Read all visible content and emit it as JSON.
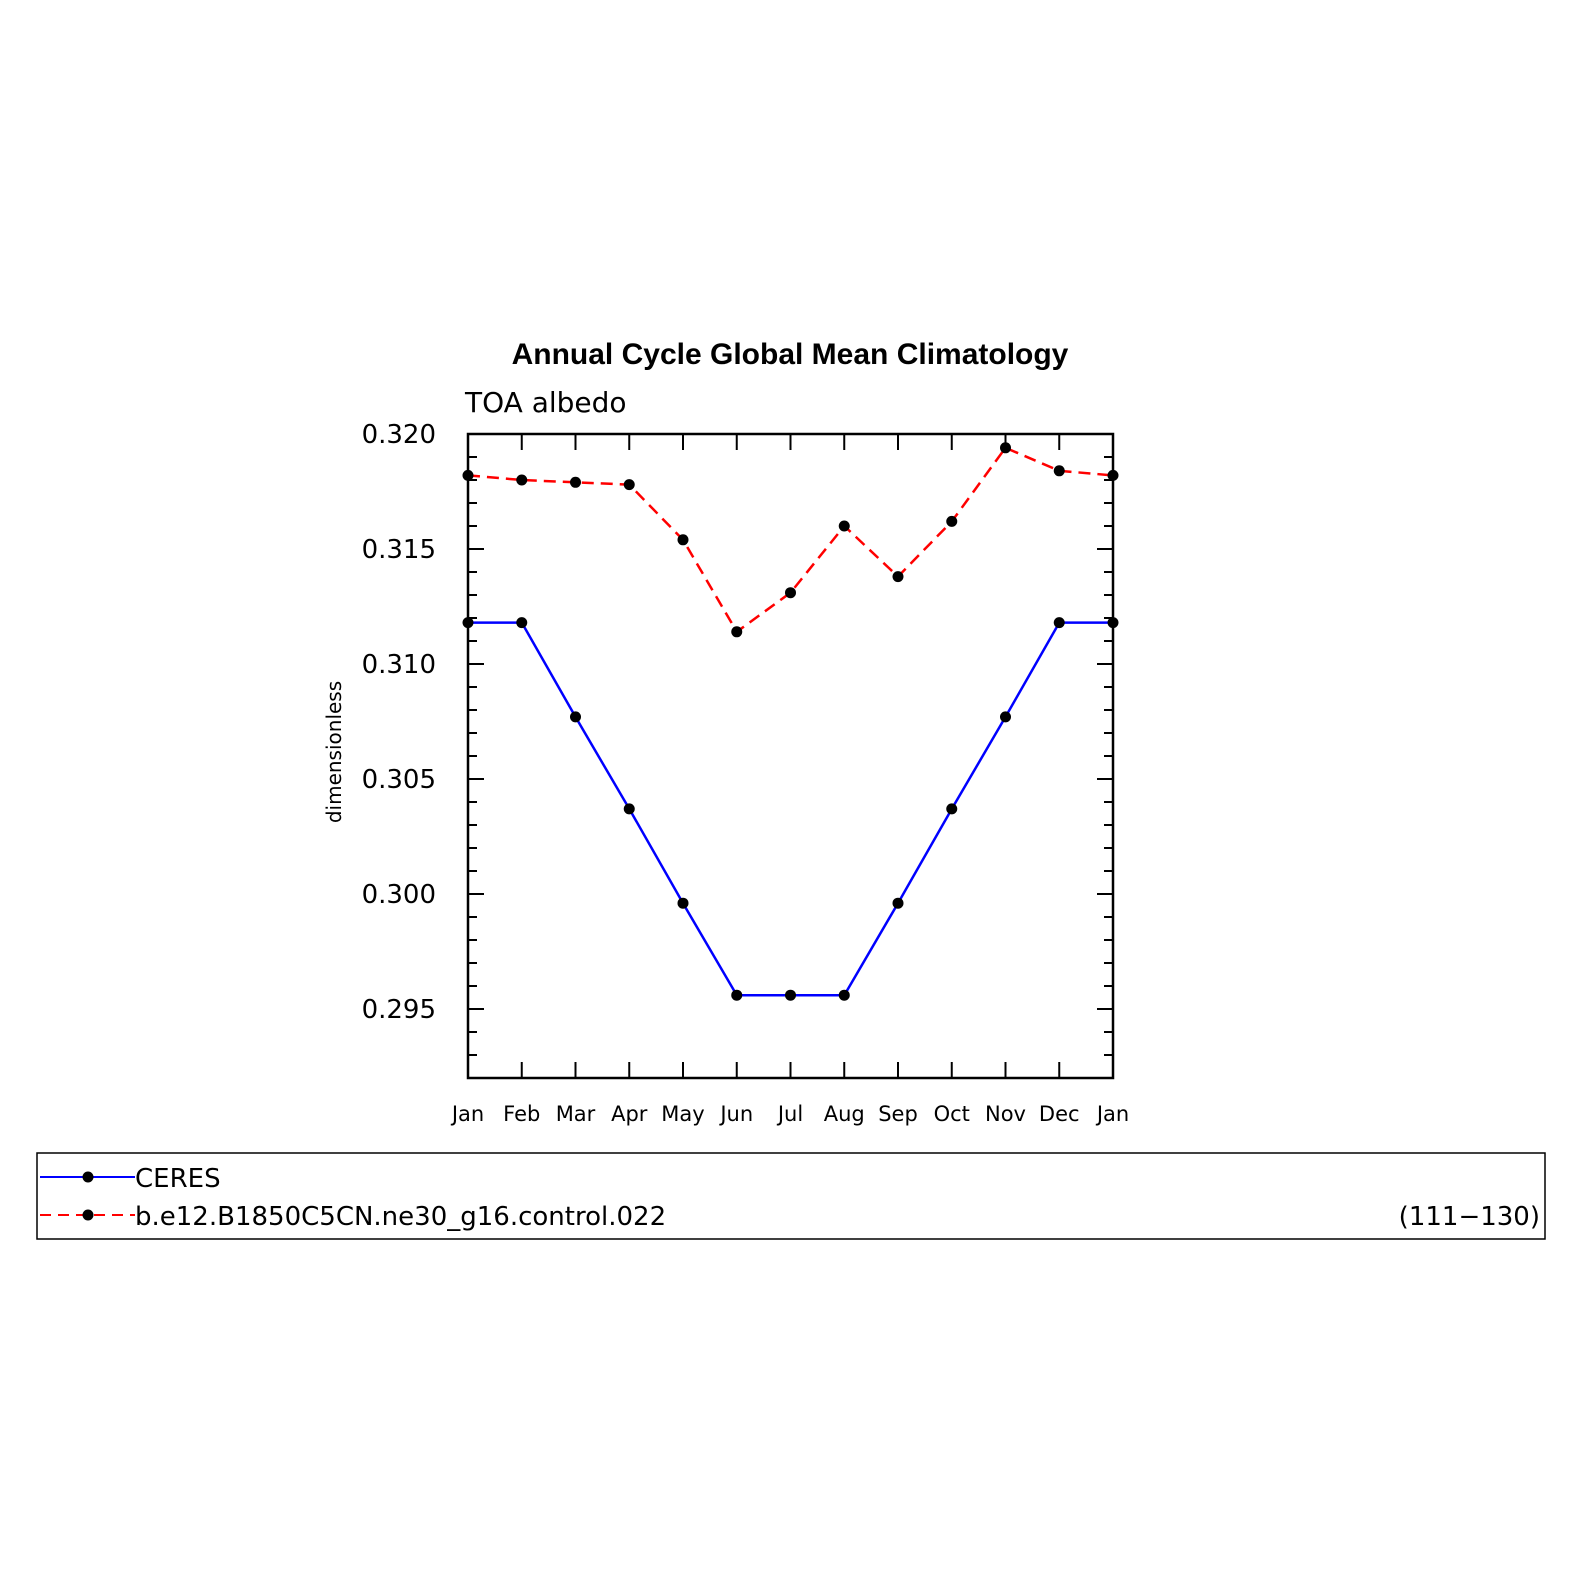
{
  "chart_data": {
    "type": "line",
    "title": "Annual Cycle Global Mean Climatology",
    "subtitle": "TOA albedo",
    "ylabel": "dimensionless",
    "xlabel": "",
    "categories": [
      "Jan",
      "Feb",
      "Mar",
      "Apr",
      "May",
      "Jun",
      "Jul",
      "Aug",
      "Sep",
      "Oct",
      "Nov",
      "Dec",
      "Jan"
    ],
    "ylim": [
      0.292,
      0.32
    ],
    "yticks": [
      "0.295",
      "0.300",
      "0.305",
      "0.310",
      "0.315",
      "0.320"
    ],
    "series": [
      {
        "name": "CERES",
        "color": "#0000ff",
        "dash": "solid",
        "values": [
          0.3118,
          0.3118,
          0.3077,
          0.3037,
          0.2996,
          0.2956,
          0.2956,
          0.2956,
          0.2996,
          0.3037,
          0.3077,
          0.3118,
          0.3118
        ]
      },
      {
        "name": "b.e12.B1850C5CN.ne30_g16.control.022",
        "color": "#ff0000",
        "dash": "dashed",
        "values": [
          0.3182,
          0.318,
          0.3179,
          0.3178,
          0.3154,
          0.3114,
          0.3131,
          0.316,
          0.3138,
          0.3162,
          0.3194,
          0.3184,
          0.3182
        ]
      }
    ],
    "marker_color": "#000000",
    "grid": false,
    "legend": {
      "placement": "bottom",
      "note": "(111−130)"
    }
  }
}
